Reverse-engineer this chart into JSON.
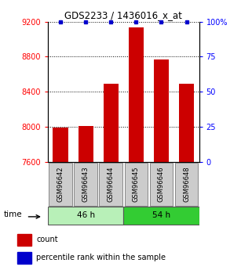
{
  "title": "GDS2233 / 1436016_x_at",
  "samples": [
    "GSM96642",
    "GSM96643",
    "GSM96644",
    "GSM96645",
    "GSM96646",
    "GSM96648"
  ],
  "counts": [
    7990,
    8010,
    8490,
    9130,
    8770,
    8490
  ],
  "ylim_left": [
    7600,
    9200
  ],
  "ylim_right": [
    0,
    100
  ],
  "yticks_left": [
    7600,
    8000,
    8400,
    8800,
    9200
  ],
  "yticks_right": [
    0,
    25,
    50,
    75,
    100
  ],
  "groups": [
    {
      "label": "46 h",
      "indices": [
        0,
        1,
        2
      ],
      "color": "#b8f0b8"
    },
    {
      "label": "54 h",
      "indices": [
        3,
        4,
        5
      ],
      "color": "#33cc33"
    }
  ],
  "bar_color": "#cc0000",
  "percentile_color": "#0000cc",
  "group_box_color": "#cccccc",
  "time_label": "time",
  "legend_count_label": "count",
  "legend_percentile_label": "percentile rank within the sample",
  "bar_width": 0.6,
  "fig_width": 3.21,
  "fig_height": 3.45,
  "dpi": 100
}
